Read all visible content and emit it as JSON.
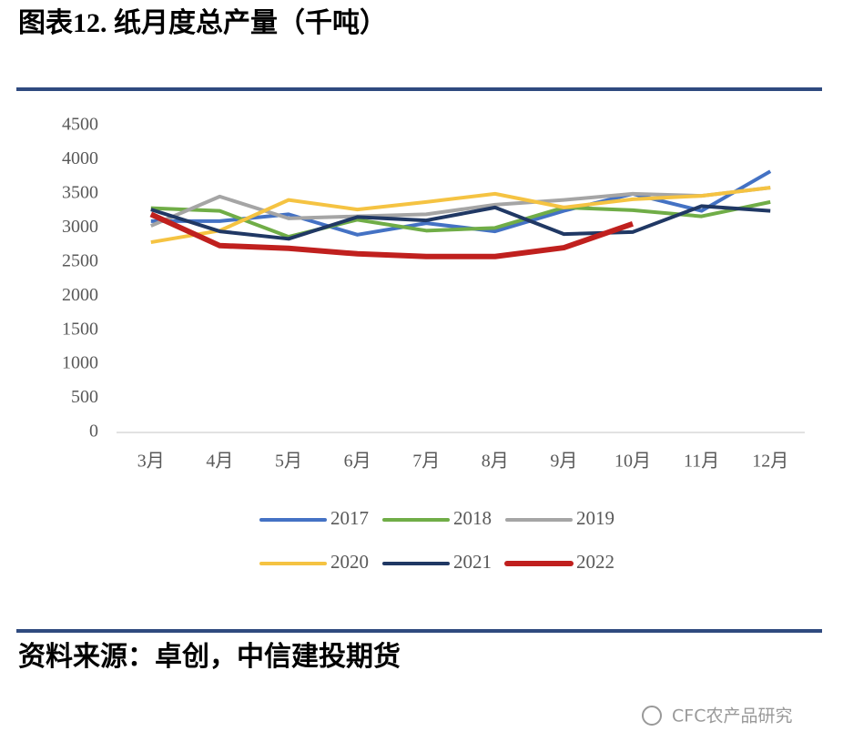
{
  "header": {
    "title": "图表12. 纸月度总产量（千吨）"
  },
  "chart_data": {
    "type": "line",
    "categories": [
      "3月",
      "4月",
      "5月",
      "6月",
      "7月",
      "8月",
      "9月",
      "10月",
      "11月",
      "12月"
    ],
    "series": [
      {
        "name": "2017",
        "color": "#4472c4",
        "values": [
          3100,
          3100,
          3200,
          2900,
          3070,
          2950,
          3250,
          3500,
          3250,
          3830
        ]
      },
      {
        "name": "2018",
        "color": "#70ad47",
        "values": [
          3290,
          3250,
          2870,
          3120,
          2960,
          3000,
          3300,
          3260,
          3170,
          3380
        ]
      },
      {
        "name": "2019",
        "color": "#a5a5a5",
        "values": [
          3030,
          3460,
          3140,
          3170,
          3200,
          3340,
          3410,
          3500,
          3470,
          3590
        ]
      },
      {
        "name": "2020",
        "color": "#f5c342",
        "values": [
          2790,
          2960,
          3410,
          3270,
          3380,
          3500,
          3300,
          3420,
          3470,
          3590
        ]
      },
      {
        "name": "2021",
        "color": "#203864",
        "values": [
          3270,
          2950,
          2840,
          3160,
          3110,
          3300,
          2910,
          2940,
          3320,
          3250
        ]
      },
      {
        "name": "2022",
        "color": "#c0201e",
        "values": [
          3200,
          2740,
          2700,
          2620,
          2580,
          2580,
          2710,
          3060,
          null,
          null
        ]
      }
    ],
    "ylim": [
      0,
      4500
    ],
    "yticks": [
      0,
      500,
      1000,
      1500,
      2000,
      2500,
      3000,
      3500,
      4000,
      4500
    ],
    "grid": false,
    "legend": "bottom"
  },
  "footer": {
    "source": "资料来源：卓创，中信建投期货"
  },
  "watermark": "CFC农产品研究"
}
